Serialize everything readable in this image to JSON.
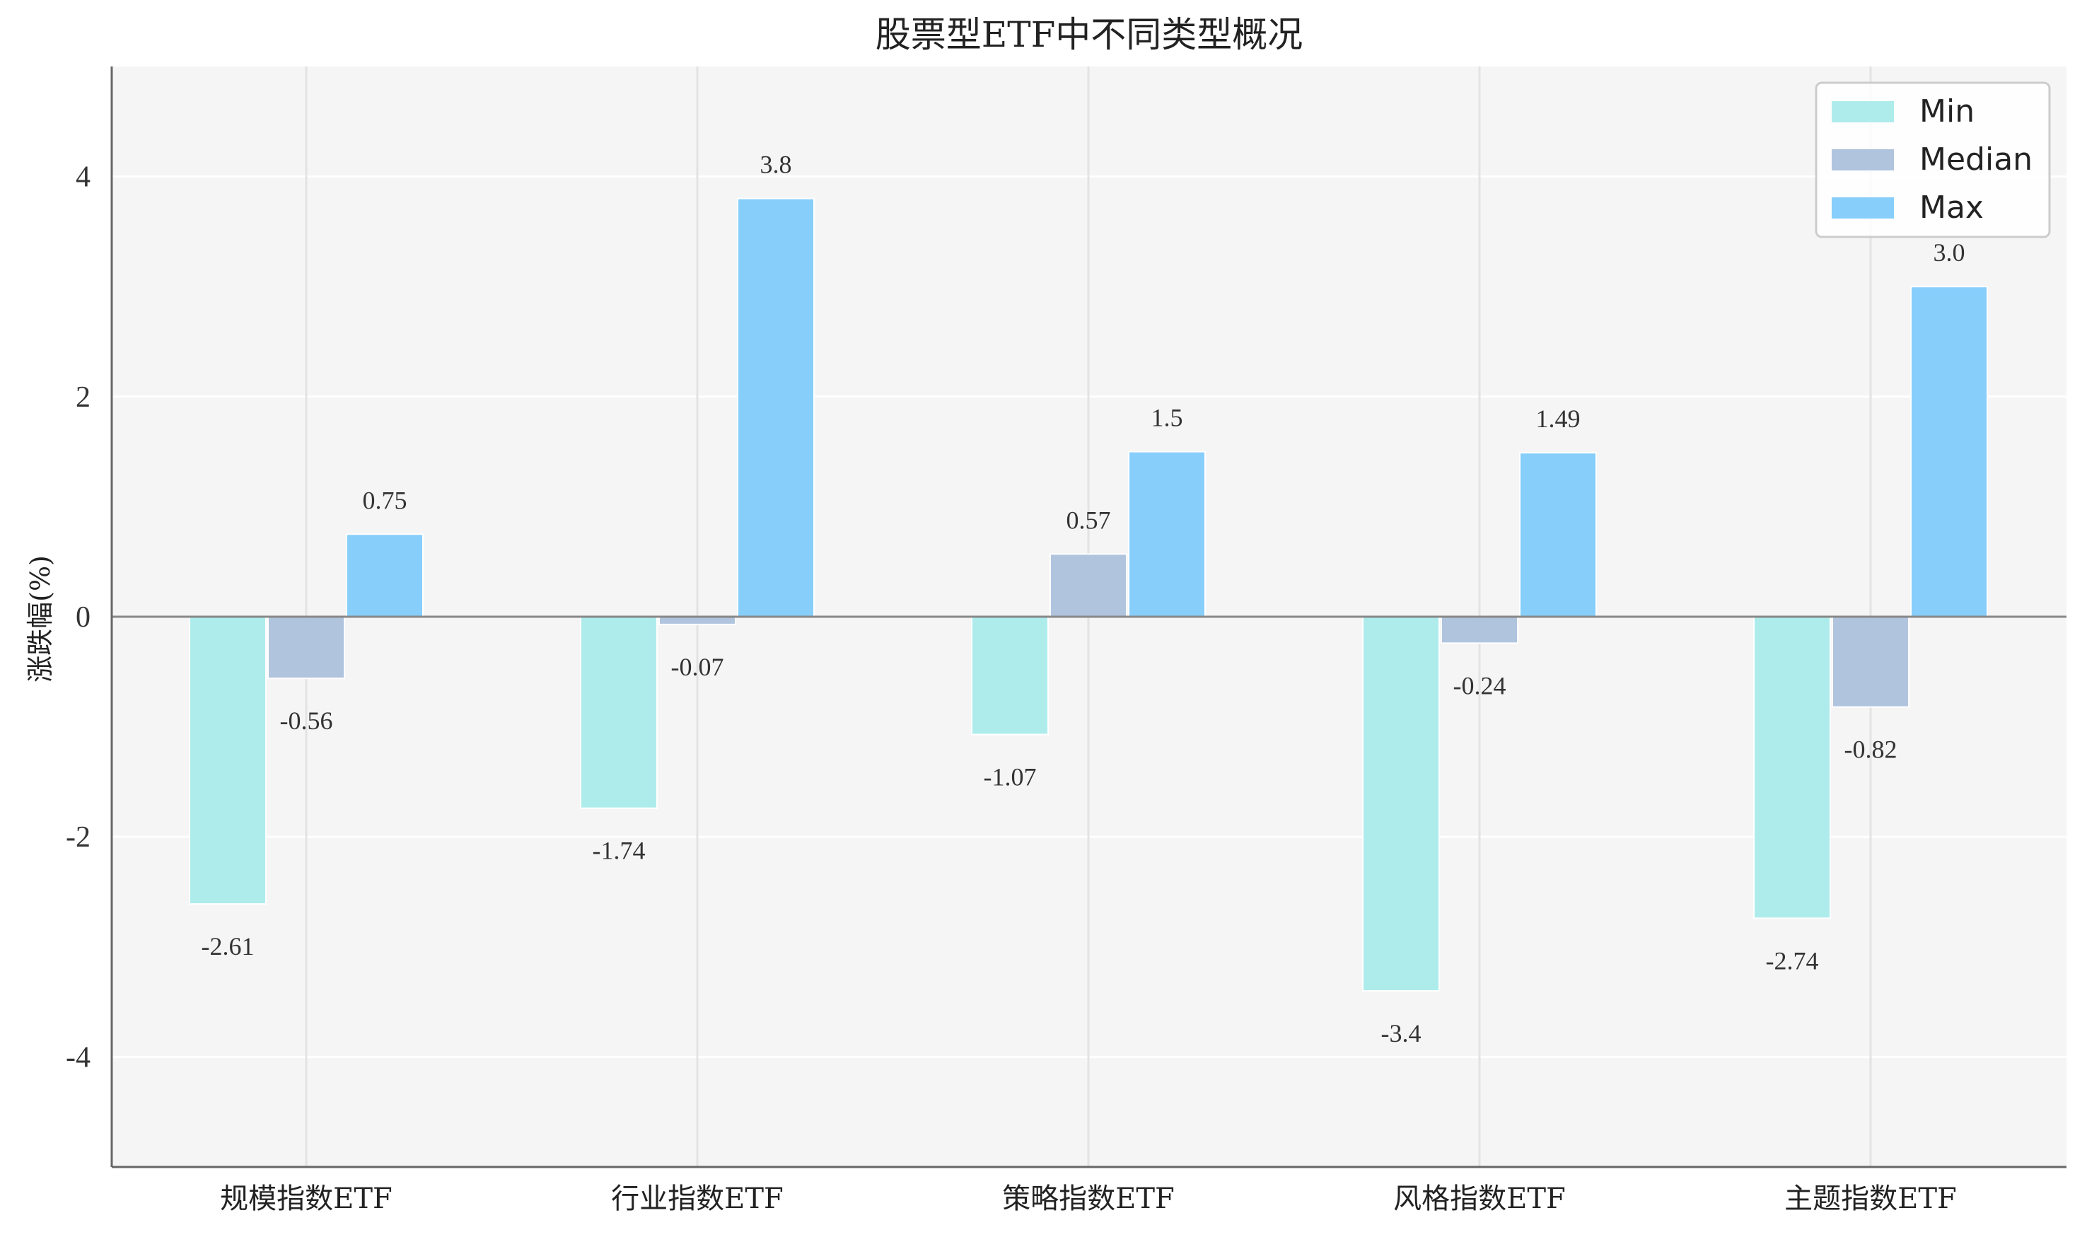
{
  "chart_data": {
    "type": "bar",
    "title": "股票型ETF中不同类型概况",
    "xlabel": "",
    "ylabel": "涨跌幅(%)",
    "ylim": [
      -5,
      5
    ],
    "yticks": [
      -4,
      -2,
      0,
      2,
      4
    ],
    "ytick_labels": [
      "-4",
      "-2",
      "0",
      "2",
      "4"
    ],
    "categories": [
      "规模指数ETF",
      "行业指数ETF",
      "策略指数ETF",
      "风格指数ETF",
      "主题指数ETF"
    ],
    "series": [
      {
        "name": "Min",
        "values": [
          -2.61,
          -1.74,
          -1.07,
          -3.4,
          -2.74
        ],
        "labels": [
          "-2.61",
          "-1.74",
          "-1.07",
          "-3.4",
          "-2.74"
        ],
        "color": "#aeecec"
      },
      {
        "name": "Median",
        "values": [
          -0.56,
          -0.07,
          0.57,
          -0.24,
          -0.82
        ],
        "labels": [
          "-0.56",
          "-0.07",
          "0.57",
          "-0.24",
          "-0.82"
        ],
        "color": "#b0c4de"
      },
      {
        "name": "Max",
        "values": [
          0.75,
          3.8,
          1.5,
          1.49,
          3.0
        ],
        "labels": [
          "0.75",
          "3.8",
          "1.5",
          "1.49",
          "3.0"
        ],
        "color": "#87cefa"
      }
    ],
    "legend_position": "top-right",
    "grid": true,
    "background_color": "#f5f5f5"
  }
}
